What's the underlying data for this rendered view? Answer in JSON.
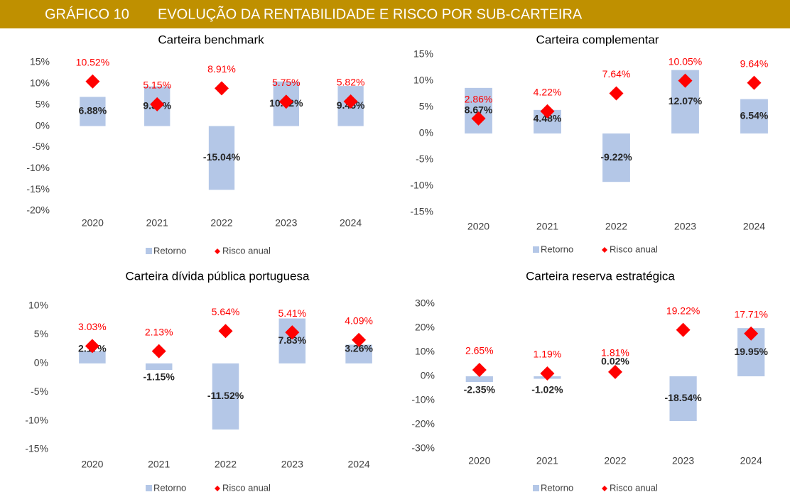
{
  "header": {
    "label": "GRÁFICO 10",
    "title": "EVOLUÇÃO DA RENTABILIDADE E RISCO POR SUB-CARTEIRA"
  },
  "chart_data": [
    {
      "type": "bar",
      "title": "Carteira benchmark",
      "categories": [
        "2020",
        "2021",
        "2022",
        "2023",
        "2024"
      ],
      "series": [
        {
          "name": "Retorno",
          "type": "bar",
          "color": "#b4c7e7",
          "values": [
            6.88,
            9.37,
            -15.04,
            10.52,
            9.45
          ],
          "value_labels": [
            "6.88%",
            "9.37%",
            "-15.04%",
            "10.52%",
            "9.45%"
          ]
        },
        {
          "name": "Risco anual",
          "type": "scatter",
          "color": "#ff0000",
          "values": [
            10.52,
            5.15,
            8.91,
            5.75,
            5.82
          ],
          "value_labels": [
            "10.52%",
            "5.15%",
            "8.91%",
            "5.75%",
            "5.82%"
          ]
        }
      ],
      "ylim": [
        -20,
        15
      ],
      "yticks": [
        {
          "value": 15,
          "label": "15%"
        },
        {
          "value": 10,
          "label": "10%"
        },
        {
          "value": 5,
          "label": "5%"
        },
        {
          "value": 0,
          "label": "0%"
        },
        {
          "value": -5,
          "label": "-5%"
        },
        {
          "value": -10,
          "label": "-10%"
        },
        {
          "value": -15,
          "label": "-15%"
        },
        {
          "value": -20,
          "label": "-20%"
        }
      ]
    },
    {
      "type": "bar",
      "title": "Carteira complementar",
      "categories": [
        "2020",
        "2021",
        "2022",
        "2023",
        "2024"
      ],
      "series": [
        {
          "name": "Retorno",
          "type": "bar",
          "color": "#b4c7e7",
          "values": [
            8.67,
            4.48,
            -9.22,
            12.07,
            6.54
          ],
          "value_labels": [
            "8.67%",
            "4.48%",
            "-9.22%",
            "12.07%",
            "6.54%"
          ]
        },
        {
          "name": "Risco anual",
          "type": "scatter",
          "color": "#ff0000",
          "values": [
            2.86,
            4.22,
            7.64,
            10.05,
            9.64
          ],
          "value_labels": [
            "2.86%",
            "4.22%",
            "7.64%",
            "10.05%",
            "9.64%"
          ]
        }
      ],
      "ylim": [
        -15,
        15
      ],
      "yticks": [
        {
          "value": 15,
          "label": "15%"
        },
        {
          "value": 10,
          "label": "10%"
        },
        {
          "value": 5,
          "label": "5%"
        },
        {
          "value": 0,
          "label": "0%"
        },
        {
          "value": -5,
          "label": "-5%"
        },
        {
          "value": -10,
          "label": "-10%"
        },
        {
          "value": -15,
          "label": "-15%"
        }
      ]
    },
    {
      "type": "bar",
      "title": "Carteira dívida pública portuguesa",
      "categories": [
        "2020",
        "2021",
        "2022",
        "2023",
        "2024"
      ],
      "series": [
        {
          "name": "Retorno",
          "type": "bar",
          "color": "#b4c7e7",
          "values": [
            2.17,
            -1.15,
            -11.52,
            7.83,
            3.26
          ],
          "value_labels": [
            "2.17%",
            "-1.15%",
            "-11.52%",
            "7.83%",
            "3.26%"
          ]
        },
        {
          "name": "Risco anual",
          "type": "scatter",
          "color": "#ff0000",
          "values": [
            3.03,
            2.13,
            5.64,
            5.41,
            4.09
          ],
          "value_labels": [
            "3.03%",
            "2.13%",
            "5.64%",
            "5.41%",
            "4.09%"
          ]
        }
      ],
      "ylim": [
        -15,
        10
      ],
      "yticks": [
        {
          "value": 10,
          "label": "10%"
        },
        {
          "value": 5,
          "label": "5%"
        },
        {
          "value": 0,
          "label": "0%"
        },
        {
          "value": -5,
          "label": "-5%"
        },
        {
          "value": -10,
          "label": "-10%"
        },
        {
          "value": -15,
          "label": "-15%"
        }
      ]
    },
    {
      "type": "bar",
      "title": "Carteira reserva estratégica",
      "categories": [
        "2020",
        "2021",
        "2022",
        "2023",
        "2024"
      ],
      "series": [
        {
          "name": "Retorno",
          "type": "bar",
          "color": "#b4c7e7",
          "values": [
            -2.35,
            -1.02,
            0.02,
            -18.54,
            19.95
          ],
          "value_labels": [
            "-2.35%",
            "-1.02%",
            "0.02%",
            "-18.54%",
            "19.95%"
          ]
        },
        {
          "name": "Risco anual",
          "type": "scatter",
          "color": "#ff0000",
          "values": [
            2.65,
            1.19,
            1.81,
            19.22,
            17.71
          ],
          "value_labels": [
            "2.65%",
            "1.19%",
            "1.81%",
            "19.22%",
            "17.71%"
          ]
        }
      ],
      "ylim": [
        -30,
        30
      ],
      "yticks": [
        {
          "value": 30,
          "label": "30%"
        },
        {
          "value": 20,
          "label": "20%"
        },
        {
          "value": 10,
          "label": "10%"
        },
        {
          "value": 0,
          "label": "0%"
        },
        {
          "value": -10,
          "label": "-10%"
        },
        {
          "value": -20,
          "label": "-20%"
        },
        {
          "value": -30,
          "label": "-30%"
        }
      ]
    }
  ]
}
